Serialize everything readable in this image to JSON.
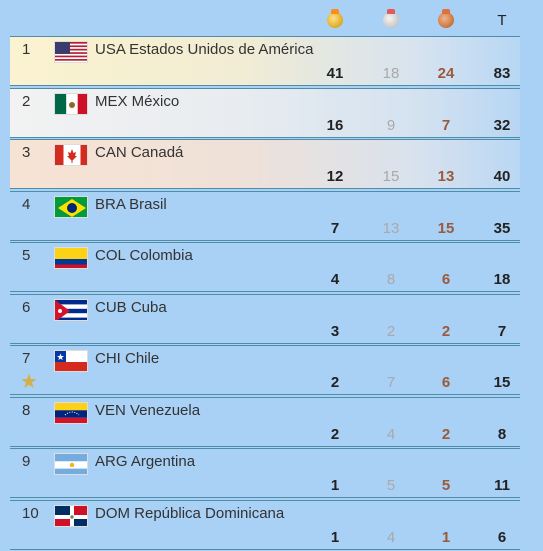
{
  "header": {
    "gold_icon": "gold-medal-icon",
    "silver_icon": "silver-medal-icon",
    "bronze_icon": "bronze-medal-icon",
    "total_label": "T"
  },
  "colors": {
    "gold": "#e0a820",
    "silver": "#c7c7c7",
    "bronze": "#c9733c",
    "background": "#a9d0f5"
  },
  "rows": [
    {
      "rank": "1",
      "code": "USA",
      "name": "Estados Unidos de América",
      "label": "USA Estados Unidos de América",
      "gold": "41",
      "silver": "18",
      "bronze": "24",
      "total": "83"
    },
    {
      "rank": "2",
      "code": "MEX",
      "name": "México",
      "label": "MEX México",
      "gold": "16",
      "silver": "9",
      "bronze": "7",
      "total": "32"
    },
    {
      "rank": "3",
      "code": "CAN",
      "name": "Canadá",
      "label": "CAN Canadá",
      "gold": "12",
      "silver": "15",
      "bronze": "13",
      "total": "40"
    },
    {
      "rank": "4",
      "code": "BRA",
      "name": "Brasil",
      "label": "BRA Brasil",
      "gold": "7",
      "silver": "13",
      "bronze": "15",
      "total": "35"
    },
    {
      "rank": "5",
      "code": "COL",
      "name": "Colombia",
      "label": "COL Colombia",
      "gold": "4",
      "silver": "8",
      "bronze": "6",
      "total": "18"
    },
    {
      "rank": "6",
      "code": "CUB",
      "name": "Cuba",
      "label": "CUB Cuba",
      "gold": "3",
      "silver": "2",
      "bronze": "2",
      "total": "7"
    },
    {
      "rank": "7",
      "code": "CHI",
      "name": "Chile",
      "label": "CHI Chile",
      "gold": "2",
      "silver": "7",
      "bronze": "6",
      "total": "15",
      "star_icon": "host-star-icon"
    },
    {
      "rank": "8",
      "code": "VEN",
      "name": "Venezuela",
      "label": "VEN Venezuela",
      "gold": "2",
      "silver": "4",
      "bronze": "2",
      "total": "8"
    },
    {
      "rank": "9",
      "code": "ARG",
      "name": "Argentina",
      "label": "ARG Argentina",
      "gold": "1",
      "silver": "5",
      "bronze": "5",
      "total": "11"
    },
    {
      "rank": "10",
      "code": "DOM",
      "name": "República Dominicana",
      "label": "DOM República Dominicana",
      "gold": "1",
      "silver": "4",
      "bronze": "1",
      "total": "6"
    }
  ]
}
